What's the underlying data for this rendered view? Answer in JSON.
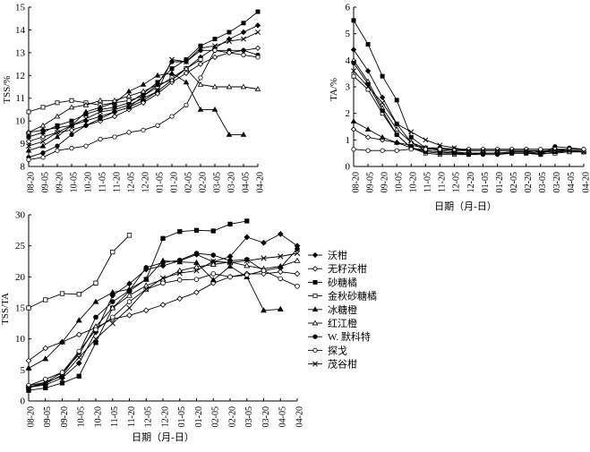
{
  "categories": [
    "08-20",
    "09-05",
    "09-20",
    "10-05",
    "10-20",
    "11-05",
    "11-20",
    "12-05",
    "12-20",
    "01-05",
    "01-20",
    "02-05",
    "02-20",
    "03-05",
    "03-20",
    "04-05",
    "04-20"
  ],
  "legend": [
    {
      "name": "沃柑",
      "marker": "diamond-filled"
    },
    {
      "name": "无籽沃柑",
      "marker": "diamond-open"
    },
    {
      "name": "砂糖橘",
      "marker": "square-filled"
    },
    {
      "name": "金秋砂糖橘",
      "marker": "square-open"
    },
    {
      "name": "冰糖橙",
      "marker": "triangle-filled"
    },
    {
      "name": "红江橙",
      "marker": "triangle-open"
    },
    {
      "name": "W. 默科特",
      "marker": "circle-filled"
    },
    {
      "name": "探戈",
      "marker": "circle-open"
    },
    {
      "name": "茂谷柑",
      "marker": "x"
    }
  ],
  "chart_data": [
    {
      "id": "tss",
      "type": "line",
      "title": "",
      "xlabel": "",
      "ylabel": "TSS/%",
      "ylim": [
        8,
        15
      ],
      "yticks": [
        8,
        9,
        10,
        11,
        12,
        13,
        14,
        15
      ],
      "categories": [
        "08-20",
        "09-05",
        "09-20",
        "10-05",
        "10-20",
        "11-05",
        "11-20",
        "12-05",
        "12-20",
        "01-05",
        "01-20",
        "02-05",
        "02-20",
        "03-05",
        "03-20",
        "04-05",
        "04-20"
      ],
      "series": [
        {
          "name": "沃柑",
          "values": [
            9.5,
            9.6,
            9.7,
            9.8,
            10.0,
            10.2,
            10.4,
            10.6,
            10.9,
            11.3,
            11.8,
            12.3,
            12.8,
            13.2,
            13.6,
            13.9,
            14.2
          ]
        },
        {
          "name": "无籽沃柑",
          "values": [
            9.1,
            9.3,
            9.5,
            9.6,
            9.8,
            10.0,
            10.2,
            10.5,
            10.8,
            11.2,
            11.7,
            12.1,
            12.5,
            12.8,
            13.0,
            13.1,
            13.2
          ]
        },
        {
          "name": "砂糖橘",
          "values": [
            9.3,
            9.5,
            9.8,
            10.0,
            10.3,
            10.5,
            10.6,
            10.8,
            11.2,
            11.7,
            12.3,
            12.7,
            13.3,
            13.6,
            13.9,
            14.3,
            14.8
          ]
        },
        {
          "name": "金秋砂糖橘",
          "values": [
            10.4,
            10.6,
            10.8,
            10.9,
            10.8,
            10.7,
            10.8,
            10.9,
            11.1,
            11.5,
            11.9,
            12.3,
            12.7,
            null,
            null,
            null,
            null
          ]
        },
        {
          "name": "冰糖橙",
          "values": [
            8.7,
            8.9,
            9.3,
            9.8,
            10.4,
            10.6,
            10.8,
            11.3,
            11.6,
            12.0,
            12.1,
            11.7,
            10.5,
            10.5,
            9.4,
            9.4,
            null
          ]
        },
        {
          "name": "红江橙",
          "values": [
            9.5,
            9.8,
            10.2,
            10.6,
            10.7,
            10.9,
            10.9,
            11.1,
            11.3,
            11.6,
            11.8,
            12.3,
            11.6,
            11.5,
            11.5,
            11.5,
            11.4
          ]
        },
        {
          "name": "W. 默科特",
          "values": [
            8.4,
            8.6,
            8.9,
            9.4,
            9.8,
            10.1,
            10.4,
            10.6,
            11.1,
            11.6,
            12.6,
            12.6,
            13.1,
            13.1,
            13.1,
            13.1,
            12.9
          ]
        },
        {
          "name": "探戈",
          "values": [
            8.3,
            8.4,
            8.7,
            8.8,
            8.9,
            9.2,
            9.3,
            9.5,
            9.6,
            9.8,
            10.2,
            10.7,
            11.9,
            13.1,
            13.0,
            12.9,
            12.8
          ]
        },
        {
          "name": "茂谷柑",
          "values": [
            8.9,
            9.1,
            9.5,
            9.8,
            10.1,
            10.4,
            10.5,
            10.7,
            11.0,
            11.3,
            12.7,
            12.6,
            13.2,
            13.3,
            13.5,
            13.6,
            13.9
          ]
        }
      ]
    },
    {
      "id": "ta",
      "type": "line",
      "title": "",
      "xlabel": "日期（月-日）",
      "ylabel": "TA/%",
      "ylim": [
        0,
        6
      ],
      "yticks": [
        0,
        1,
        2,
        3,
        4,
        5,
        6
      ],
      "categories": [
        "08-20",
        "09-05",
        "09-20",
        "10-05",
        "10-20",
        "11-05",
        "11-20",
        "12-05",
        "12-20",
        "01-05",
        "01-20",
        "02-05",
        "02-20",
        "03-05",
        "03-20",
        "04-05",
        "04-20"
      ],
      "series": [
        {
          "name": "沃柑",
          "values": [
            4.4,
            3.6,
            2.6,
            1.6,
            0.9,
            0.6,
            0.55,
            0.5,
            0.5,
            0.5,
            0.5,
            0.55,
            0.55,
            0.5,
            0.65,
            0.6,
            0.55
          ]
        },
        {
          "name": "无籽沃柑",
          "values": [
            1.4,
            1.1,
            1.0,
            0.9,
            0.7,
            0.6,
            0.55,
            0.5,
            0.5,
            0.5,
            0.5,
            0.55,
            0.55,
            0.6,
            0.6,
            0.6,
            0.55
          ]
        },
        {
          "name": "砂糖橘",
          "values": [
            5.5,
            4.6,
            3.4,
            2.5,
            1.1,
            0.7,
            0.6,
            0.55,
            0.5,
            0.5,
            0.5,
            0.5,
            0.5,
            0.45,
            0.55,
            0.55,
            0.55
          ]
        },
        {
          "name": "金秋砂糖橘",
          "values": [
            3.4,
            2.9,
            2.0,
            1.2,
            0.7,
            0.5,
            0.45,
            0.45,
            0.45,
            0.5,
            0.5,
            0.5,
            0.5,
            0.5,
            0.5,
            0.55,
            0.55
          ]
        },
        {
          "name": "冰糖橙",
          "values": [
            1.7,
            1.4,
            1.1,
            0.9,
            0.8,
            0.7,
            0.7,
            0.65,
            0.6,
            0.6,
            0.6,
            0.6,
            0.6,
            0.55,
            0.55,
            0.6,
            0.6
          ]
        },
        {
          "name": "红江橙",
          "values": [
            4.0,
            3.2,
            2.2,
            1.4,
            0.9,
            0.7,
            0.65,
            0.6,
            0.6,
            0.6,
            0.6,
            0.6,
            0.6,
            0.6,
            0.6,
            0.6,
            0.6
          ]
        },
        {
          "name": "W. 默科特",
          "values": [
            3.9,
            3.1,
            2.1,
            1.2,
            0.7,
            0.55,
            0.5,
            0.5,
            0.45,
            0.45,
            0.45,
            0.5,
            0.5,
            0.45,
            0.75,
            0.7,
            0.65
          ]
        },
        {
          "name": "探戈",
          "values": [
            0.65,
            0.6,
            0.6,
            0.6,
            0.65,
            0.65,
            0.65,
            0.65,
            0.65,
            0.65,
            0.65,
            0.65,
            0.65,
            0.65,
            0.65,
            0.65,
            0.65
          ]
        },
        {
          "name": "茂谷柑",
          "values": [
            3.6,
            3.0,
            2.4,
            1.6,
            1.3,
            1.0,
            0.8,
            0.7,
            0.6,
            0.6,
            0.6,
            0.6,
            0.6,
            0.55,
            0.6,
            0.6,
            0.55
          ]
        }
      ]
    },
    {
      "id": "ratio",
      "type": "line",
      "title": "",
      "xlabel": "日期（月-日）",
      "ylabel": "TSS/TA",
      "ylim": [
        0,
        30
      ],
      "yticks": [
        0,
        5,
        10,
        15,
        20,
        25,
        30
      ],
      "categories": [
        "08-20",
        "09-05",
        "09-20",
        "10-05",
        "10-20",
        "11-05",
        "11-20",
        "12-05",
        "12-20",
        "01-05",
        "01-20",
        "02-05",
        "02-20",
        "03-05",
        "03-20",
        "04-05",
        "04-20"
      ],
      "series": [
        {
          "name": "沃柑",
          "values": [
            2.2,
            2.6,
            3.7,
            6.1,
            11.1,
            17.0,
            18.9,
            21.2,
            21.8,
            22.6,
            23.6,
            22.4,
            23.3,
            26.4,
            25.5,
            26.9,
            25.0
          ]
        },
        {
          "name": "无籽沃柑",
          "values": [
            6.5,
            8.5,
            9.5,
            10.7,
            11.8,
            13.2,
            13.8,
            14.6,
            15.5,
            16.5,
            17.5,
            19.0,
            20.0,
            20.5,
            20.5,
            20.8,
            20.5
          ]
        },
        {
          "name": "砂糖橘",
          "values": [
            1.7,
            2.1,
            2.9,
            4.0,
            9.4,
            15.0,
            17.7,
            19.6,
            26.2,
            27.3,
            27.5,
            27.4,
            28.5,
            29.0,
            null,
            null,
            null
          ]
        },
        {
          "name": "金秋砂糖橘",
          "values": [
            15.0,
            16.3,
            17.3,
            17.2,
            19.0,
            24.0,
            26.7,
            null,
            null,
            null,
            null,
            null,
            null,
            null,
            null,
            null,
            null
          ]
        },
        {
          "name": "冰糖橙",
          "values": [
            5.3,
            6.8,
            9.5,
            13.0,
            16.0,
            17.5,
            18.0,
            19.6,
            22.6,
            22.4,
            22.3,
            19.5,
            21.7,
            20.0,
            14.6,
            14.8,
            null
          ]
        },
        {
          "name": "红江橙",
          "values": [
            2.5,
            3.0,
            4.6,
            7.5,
            12.0,
            15.0,
            17.0,
            18.6,
            19.6,
            21.0,
            21.6,
            22.0,
            22.4,
            21.8,
            21.3,
            21.7,
            22.6
          ]
        },
        {
          "name": "W. 默科特",
          "values": [
            2.2,
            2.8,
            4.2,
            7.8,
            13.5,
            16.0,
            17.8,
            21.5,
            22.3,
            22.7,
            23.8,
            23.5,
            22.6,
            22.8,
            21.0,
            21.5,
            24.5
          ]
        },
        {
          "name": "探戈",
          "values": [
            2.5,
            3.5,
            4.6,
            8.0,
            11.5,
            13.5,
            16.0,
            18.0,
            19.0,
            19.5,
            19.6,
            20.5,
            20.0,
            20.3,
            21.0,
            19.7,
            18.5
          ]
        },
        {
          "name": "茂谷柑",
          "values": [
            2.2,
            3.0,
            4.0,
            7.0,
            10.0,
            12.5,
            15.0,
            18.0,
            19.8,
            20.6,
            21.0,
            22.5,
            22.3,
            22.6,
            23.0,
            23.3,
            23.8
          ]
        }
      ]
    }
  ]
}
